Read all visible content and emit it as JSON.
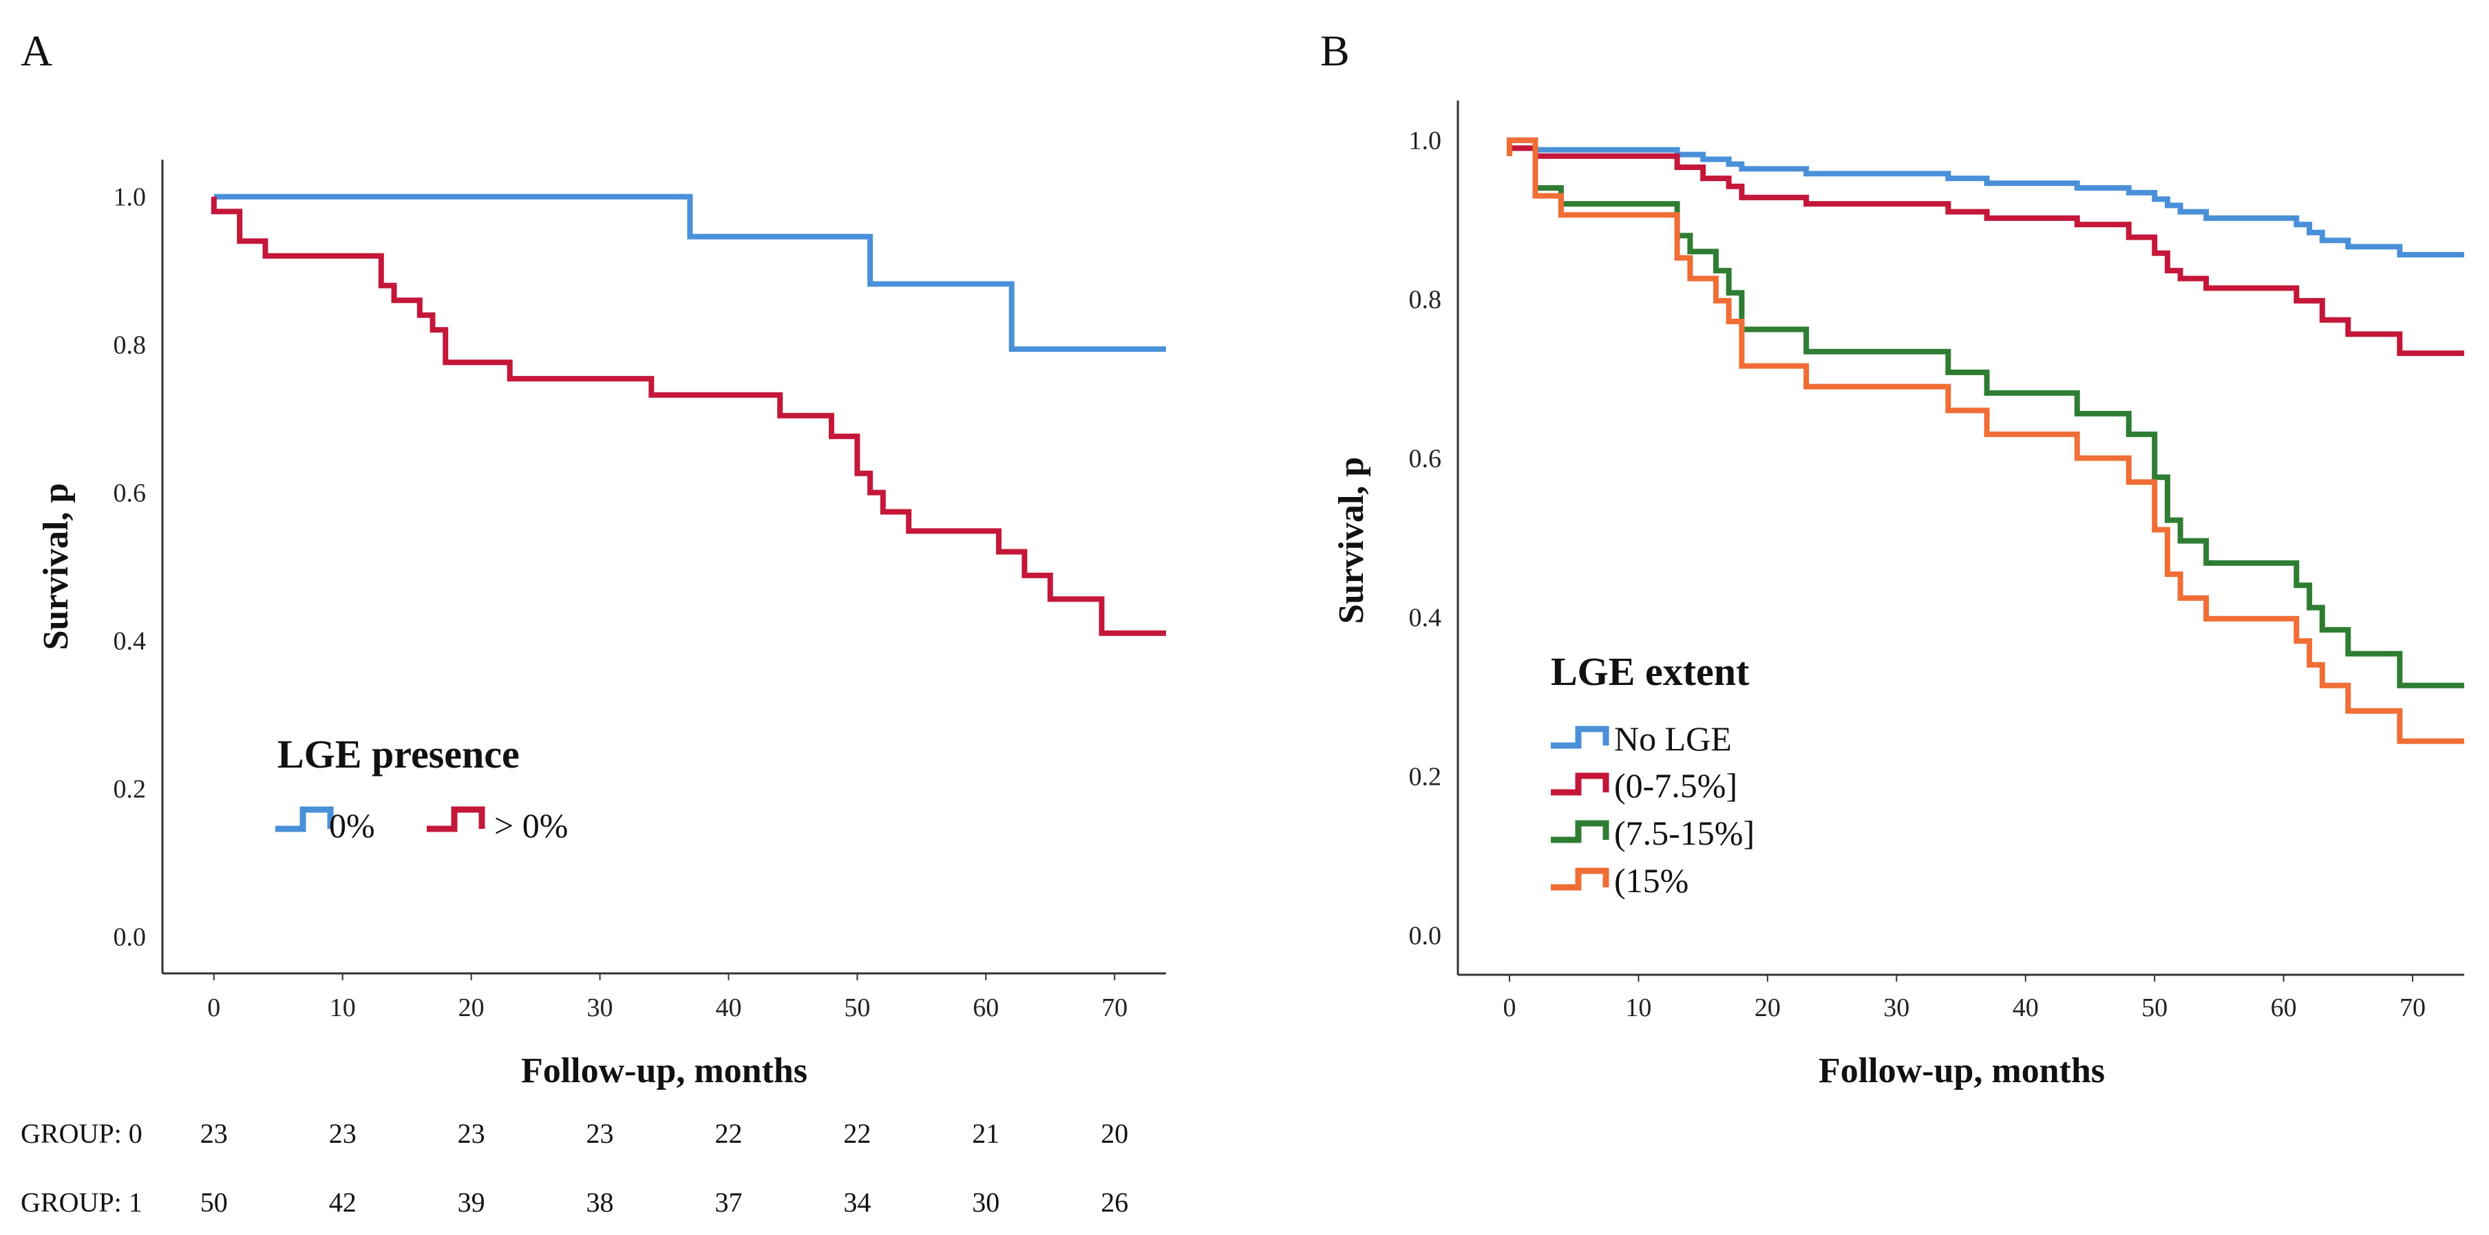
{
  "chart_data": [
    {
      "panel": "A",
      "type": "line",
      "subtype": "kaplan-meier step",
      "xlabel": "Follow-up, months",
      "ylabel": "Survival, p",
      "xlim": [
        -4,
        74
      ],
      "ylim": [
        -0.05,
        1.05
      ],
      "xticks": [
        0,
        10,
        20,
        30,
        40,
        50,
        60,
        70
      ],
      "yticks": [
        0.0,
        0.2,
        0.4,
        0.6,
        0.8,
        1.0
      ],
      "legend": {
        "title": "LGE presence",
        "position": "lower-left",
        "orientation": "horizontal"
      },
      "series": [
        {
          "name": "0%",
          "color": "#4a90d9",
          "points": [
            [
              0,
              1.0
            ],
            [
              37,
              1.0
            ],
            [
              37,
              0.946
            ],
            [
              51,
              0.946
            ],
            [
              51,
              0.882
            ],
            [
              62,
              0.882
            ],
            [
              62,
              0.794
            ],
            [
              74,
              0.794
            ]
          ]
        },
        {
          "name": "> 0%",
          "color": "#c4173a",
          "points": [
            [
              0,
              1.0
            ],
            [
              0,
              0.98
            ],
            [
              2,
              0.98
            ],
            [
              2,
              0.94
            ],
            [
              4,
              0.94
            ],
            [
              4,
              0.92
            ],
            [
              13,
              0.92
            ],
            [
              13,
              0.88
            ],
            [
              14,
              0.88
            ],
            [
              14,
              0.86
            ],
            [
              16,
              0.86
            ],
            [
              16,
              0.84
            ],
            [
              17,
              0.84
            ],
            [
              17,
              0.82
            ],
            [
              18,
              0.82
            ],
            [
              18,
              0.776
            ],
            [
              23,
              0.776
            ],
            [
              23,
              0.754
            ],
            [
              34,
              0.754
            ],
            [
              34,
              0.732
            ],
            [
              44,
              0.732
            ],
            [
              44,
              0.704
            ],
            [
              48,
              0.704
            ],
            [
              48,
              0.676
            ],
            [
              50,
              0.676
            ],
            [
              50,
              0.626
            ],
            [
              51,
              0.626
            ],
            [
              51,
              0.6
            ],
            [
              52,
              0.6
            ],
            [
              52,
              0.574
            ],
            [
              54,
              0.574
            ],
            [
              54,
              0.548
            ],
            [
              61,
              0.548
            ],
            [
              61,
              0.52
            ],
            [
              63,
              0.52
            ],
            [
              63,
              0.488
            ],
            [
              65,
              0.488
            ],
            [
              65,
              0.456
            ],
            [
              69,
              0.456
            ],
            [
              69,
              0.41
            ],
            [
              74,
              0.41
            ]
          ]
        }
      ],
      "risk_table": {
        "rows": [
          {
            "label": "GROUP: 0",
            "values": [
              23,
              23,
              23,
              23,
              22,
              22,
              21,
              20
            ]
          },
          {
            "label": "GROUP: 1",
            "values": [
              50,
              42,
              39,
              38,
              37,
              34,
              30,
              26
            ]
          }
        ]
      }
    },
    {
      "panel": "B",
      "type": "line",
      "subtype": "kaplan-meier step",
      "xlabel": "Follow-up, months",
      "ylabel": "Survival, p",
      "xlim": [
        -4,
        74
      ],
      "ylim": [
        -0.05,
        1.05
      ],
      "xticks": [
        0,
        10,
        20,
        30,
        40,
        50,
        60,
        70
      ],
      "yticks": [
        0.0,
        0.2,
        0.4,
        0.6,
        0.8,
        1.0
      ],
      "legend": {
        "title": "LGE extent",
        "position": "lower-left",
        "orientation": "vertical"
      },
      "series": [
        {
          "name": "No LGE",
          "color": "#4a90d9",
          "points": [
            [
              0,
              0.99
            ],
            [
              2,
              0.99
            ],
            [
              2,
              0.988
            ],
            [
              13,
              0.988
            ],
            [
              13,
              0.982
            ],
            [
              15,
              0.982
            ],
            [
              15,
              0.976
            ],
            [
              17,
              0.976
            ],
            [
              17,
              0.97
            ],
            [
              18,
              0.97
            ],
            [
              18,
              0.964
            ],
            [
              23,
              0.964
            ],
            [
              23,
              0.958
            ],
            [
              34,
              0.958
            ],
            [
              34,
              0.952
            ],
            [
              37,
              0.952
            ],
            [
              37,
              0.946
            ],
            [
              44,
              0.946
            ],
            [
              44,
              0.94
            ],
            [
              48,
              0.94
            ],
            [
              48,
              0.934
            ],
            [
              50,
              0.934
            ],
            [
              50,
              0.926
            ],
            [
              51,
              0.926
            ],
            [
              51,
              0.918
            ],
            [
              52,
              0.918
            ],
            [
              52,
              0.91
            ],
            [
              54,
              0.91
            ],
            [
              54,
              0.902
            ],
            [
              61,
              0.902
            ],
            [
              61,
              0.894
            ],
            [
              62,
              0.894
            ],
            [
              62,
              0.884
            ],
            [
              63,
              0.884
            ],
            [
              63,
              0.874
            ],
            [
              65,
              0.874
            ],
            [
              65,
              0.866
            ],
            [
              69,
              0.866
            ],
            [
              69,
              0.856
            ],
            [
              74,
              0.856
            ]
          ]
        },
        {
          "name": "(0-7.5%]",
          "color": "#c4173a",
          "points": [
            [
              0,
              0.99
            ],
            [
              2,
              0.99
            ],
            [
              2,
              0.98
            ],
            [
              13,
              0.98
            ],
            [
              13,
              0.966
            ],
            [
              15,
              0.966
            ],
            [
              15,
              0.952
            ],
            [
              17,
              0.952
            ],
            [
              17,
              0.942
            ],
            [
              18,
              0.942
            ],
            [
              18,
              0.928
            ],
            [
              23,
              0.928
            ],
            [
              23,
              0.92
            ],
            [
              34,
              0.92
            ],
            [
              34,
              0.91
            ],
            [
              37,
              0.91
            ],
            [
              37,
              0.902
            ],
            [
              44,
              0.902
            ],
            [
              44,
              0.894
            ],
            [
              48,
              0.894
            ],
            [
              48,
              0.878
            ],
            [
              50,
              0.878
            ],
            [
              50,
              0.858
            ],
            [
              51,
              0.858
            ],
            [
              51,
              0.836
            ],
            [
              52,
              0.836
            ],
            [
              52,
              0.826
            ],
            [
              54,
              0.826
            ],
            [
              54,
              0.814
            ],
            [
              61,
              0.814
            ],
            [
              61,
              0.798
            ],
            [
              63,
              0.798
            ],
            [
              63,
              0.774
            ],
            [
              65,
              0.774
            ],
            [
              65,
              0.756
            ],
            [
              69,
              0.756
            ],
            [
              69,
              0.732
            ],
            [
              74,
              0.732
            ]
          ]
        },
        {
          "name": "(7.5-15%]",
          "color": "#2e7d32",
          "points": [
            [
              0,
              0.98
            ],
            [
              0,
              1.0
            ],
            [
              2,
              1.0
            ],
            [
              2,
              0.94
            ],
            [
              4,
              0.94
            ],
            [
              4,
              0.92
            ],
            [
              13,
              0.92
            ],
            [
              13,
              0.88
            ],
            [
              14,
              0.88
            ],
            [
              14,
              0.86
            ],
            [
              16,
              0.86
            ],
            [
              16,
              0.836
            ],
            [
              17,
              0.836
            ],
            [
              17,
              0.808
            ],
            [
              18,
              0.808
            ],
            [
              18,
              0.762
            ],
            [
              23,
              0.762
            ],
            [
              23,
              0.734
            ],
            [
              34,
              0.734
            ],
            [
              34,
              0.708
            ],
            [
              37,
              0.708
            ],
            [
              37,
              0.682
            ],
            [
              44,
              0.682
            ],
            [
              44,
              0.656
            ],
            [
              48,
              0.656
            ],
            [
              48,
              0.63
            ],
            [
              50,
              0.63
            ],
            [
              50,
              0.576
            ],
            [
              51,
              0.576
            ],
            [
              51,
              0.522
            ],
            [
              52,
              0.522
            ],
            [
              52,
              0.496
            ],
            [
              54,
              0.496
            ],
            [
              54,
              0.468
            ],
            [
              61,
              0.468
            ],
            [
              61,
              0.44
            ],
            [
              62,
              0.44
            ],
            [
              62,
              0.412
            ],
            [
              63,
              0.412
            ],
            [
              63,
              0.384
            ],
            [
              65,
              0.384
            ],
            [
              65,
              0.354
            ],
            [
              69,
              0.354
            ],
            [
              69,
              0.314
            ],
            [
              74,
              0.314
            ]
          ]
        },
        {
          "name": "(15%",
          "color": "#f06d35",
          "points": [
            [
              0,
              0.98
            ],
            [
              0,
              1.0
            ],
            [
              2,
              1.0
            ],
            [
              2,
              0.93
            ],
            [
              4,
              0.93
            ],
            [
              4,
              0.906
            ],
            [
              13,
              0.906
            ],
            [
              13,
              0.852
            ],
            [
              14,
              0.852
            ],
            [
              14,
              0.826
            ],
            [
              16,
              0.826
            ],
            [
              16,
              0.798
            ],
            [
              17,
              0.798
            ],
            [
              17,
              0.772
            ],
            [
              18,
              0.772
            ],
            [
              18,
              0.716
            ],
            [
              23,
              0.716
            ],
            [
              23,
              0.69
            ],
            [
              34,
              0.69
            ],
            [
              34,
              0.66
            ],
            [
              37,
              0.66
            ],
            [
              37,
              0.63
            ],
            [
              44,
              0.63
            ],
            [
              44,
              0.6
            ],
            [
              48,
              0.6
            ],
            [
              48,
              0.57
            ],
            [
              50,
              0.57
            ],
            [
              50,
              0.51
            ],
            [
              51,
              0.51
            ],
            [
              51,
              0.454
            ],
            [
              52,
              0.454
            ],
            [
              52,
              0.424
            ],
            [
              54,
              0.424
            ],
            [
              54,
              0.398
            ],
            [
              61,
              0.398
            ],
            [
              61,
              0.37
            ],
            [
              62,
              0.37
            ],
            [
              62,
              0.34
            ],
            [
              63,
              0.34
            ],
            [
              63,
              0.314
            ],
            [
              65,
              0.314
            ],
            [
              65,
              0.282
            ],
            [
              69,
              0.282
            ],
            [
              69,
              0.244
            ],
            [
              74,
              0.244
            ]
          ]
        }
      ]
    }
  ]
}
